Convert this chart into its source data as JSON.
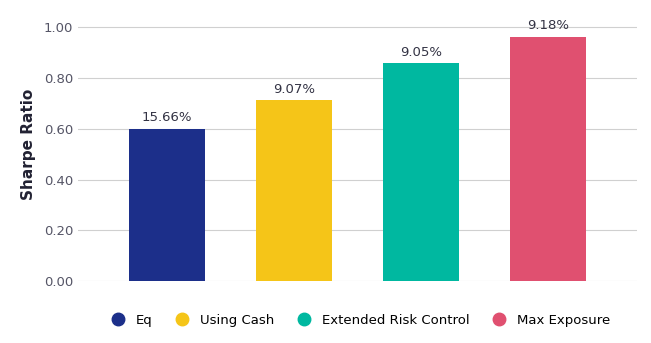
{
  "categories": [
    "Eq",
    "Using Cash",
    "Extended Risk Control",
    "Max Exposure"
  ],
  "values": [
    0.601,
    0.712,
    0.858,
    0.962
  ],
  "bar_colors": [
    "#1c2f8a",
    "#f5c518",
    "#00b8a0",
    "#e05070"
  ],
  "labels": [
    "15.66%",
    "9.07%",
    "9.05%",
    "9.18%"
  ],
  "ylabel": "Sharpe Ratio",
  "ylim": [
    0,
    1.08
  ],
  "yticks": [
    0.0,
    0.2,
    0.4,
    0.6,
    0.8,
    1.0
  ],
  "ytick_labels": [
    "0.00",
    "0.20",
    "0.40",
    "0.60",
    "0.80",
    "1.00"
  ],
  "legend_labels": [
    "Eq",
    "Using Cash",
    "Extended Risk Control",
    "Max Exposure"
  ],
  "legend_colors": [
    "#1c2f8a",
    "#f5c518",
    "#00b8a0",
    "#e05070"
  ],
  "background_color": "#ffffff",
  "grid_color": "#d0d0d0",
  "label_fontsize": 9.5,
  "ylabel_fontsize": 11,
  "bar_width": 0.6,
  "bar_positions": [
    1,
    2,
    3,
    4
  ]
}
